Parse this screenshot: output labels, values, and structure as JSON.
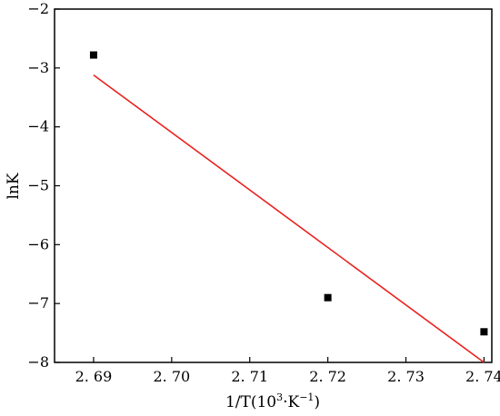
{
  "chart_data": {
    "type": "scatter",
    "title": "",
    "xlabel_main": "1/T(10",
    "xlabel_sup1": "3",
    "xlabel_mid": "·K",
    "xlabel_sup2": "−1",
    "xlabel_end": ")",
    "ylabel": "lnK",
    "xlim": [
      2.685,
      2.741
    ],
    "ylim": [
      -8,
      -2
    ],
    "xticks": [
      2.69,
      2.7,
      2.71,
      2.72,
      2.73,
      2.74
    ],
    "xtick_labels": [
      "2. 69",
      "2. 70",
      "2. 71",
      "2. 72",
      "2. 73",
      "2. 74"
    ],
    "yticks": [
      -8,
      -7,
      -6,
      -5,
      -4,
      -3,
      -2
    ],
    "ytick_labels": [
      "−8",
      "−7",
      "−6",
      "−5",
      "−4",
      "−3",
      "−2"
    ],
    "grid": false,
    "series": [
      {
        "x": [
          2.69,
          2.72,
          2.74
        ],
        "y": [
          -2.78,
          -6.9,
          -7.48
        ],
        "marker": "square",
        "color": "#000000"
      }
    ],
    "fit_line": {
      "x": [
        2.69,
        2.74
      ],
      "y": [
        -3.12,
        -8.0
      ],
      "color": "#e8231f"
    }
  }
}
